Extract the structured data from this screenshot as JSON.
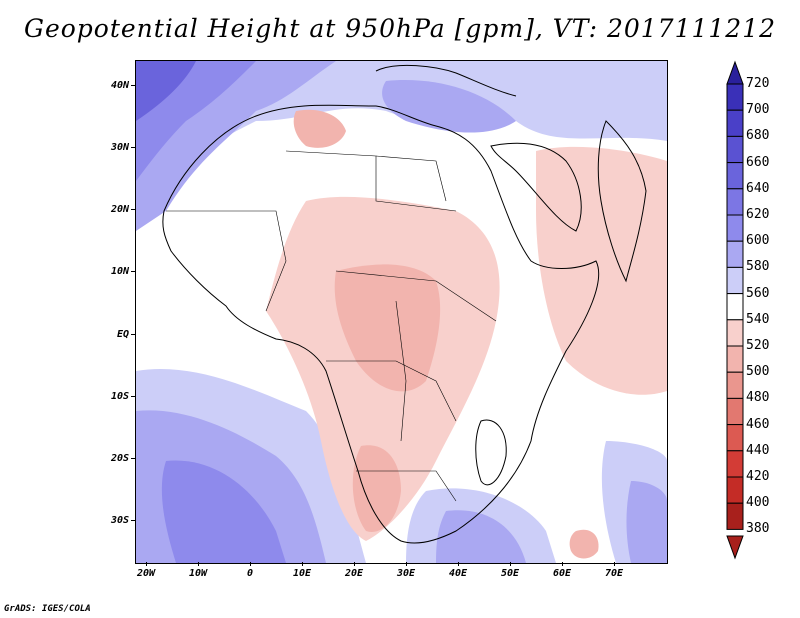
{
  "title": "Geopotential Height at 950hPa [gpm], VT: 2017111212",
  "credit": "GrADS: IGES/COLA",
  "axes": {
    "lat_labels": [
      "40N",
      "30N",
      "20N",
      "10N",
      "EQ",
      "10S",
      "20S",
      "30S"
    ],
    "lon_labels": [
      "20W",
      "10W",
      "0",
      "10E",
      "20E",
      "30E",
      "40E",
      "50E",
      "60E",
      "70E"
    ]
  },
  "colorbar": {
    "levels": [
      "720",
      "700",
      "680",
      "660",
      "640",
      "620",
      "600",
      "580",
      "560",
      "540",
      "520",
      "500",
      "480",
      "460",
      "440",
      "420",
      "400",
      "380"
    ],
    "colors": [
      "#2a209c",
      "#3a30b8",
      "#4a40c8",
      "#5a52d2",
      "#6a64dc",
      "#7c76e4",
      "#8e8aec",
      "#aaa8f2",
      "#cccef8",
      "#ffffff",
      "#f8d0cc",
      "#f2b4ae",
      "#ea968e",
      "#e27870",
      "#dc5a52",
      "#d33c36",
      "#c42c26",
      "#a8201c"
    ]
  },
  "map_colors": {
    "ocean_high": "#aaa8f2",
    "ocean_mid": "#cccef8",
    "land_low": "#f8d0cc",
    "land_lower": "#f2b4ae",
    "neutral": "#ffffff",
    "deep_high": "#6a64dc",
    "border": "#000000"
  }
}
